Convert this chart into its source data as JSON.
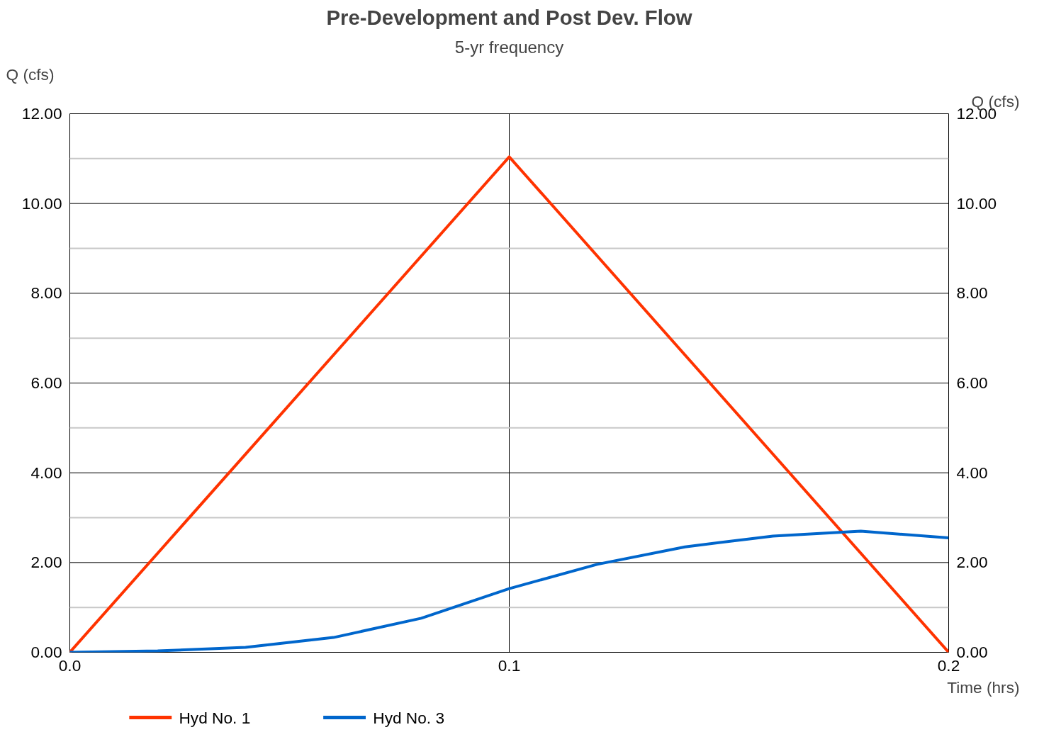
{
  "chart_data": {
    "type": "line",
    "title": "Pre-Development and Post Dev. Flow",
    "subtitle": "5-yr frequency",
    "xlabel": "Time (hrs)",
    "ylabel": "Q (cfs)",
    "y2label": "Q (cfs)",
    "series": [
      {
        "name": "Hyd No. 1",
        "color": "#ff3300",
        "x": [
          0.0,
          0.1,
          0.2
        ],
        "values": [
          0.0,
          11.04,
          0.0
        ]
      },
      {
        "name": "Hyd No. 3",
        "color": "#0066cc",
        "x": [
          0.0,
          0.02,
          0.04,
          0.06,
          0.08,
          0.1,
          0.12,
          0.14,
          0.16,
          0.18,
          0.2
        ],
        "values": [
          0.0,
          0.03,
          0.11,
          0.33,
          0.76,
          1.42,
          1.96,
          2.35,
          2.59,
          2.7,
          2.55
        ]
      }
    ],
    "xlim": [
      0.0,
      0.2
    ],
    "xticks": [
      {
        "value": 0.0,
        "label": "0.0"
      },
      {
        "value": 0.1,
        "label": "0.1"
      },
      {
        "value": 0.2,
        "label": "0.2"
      }
    ],
    "ylim": [
      0,
      12
    ],
    "yticks": [
      {
        "value": 0,
        "label": "0.00"
      },
      {
        "value": 1,
        "label": null
      },
      {
        "value": 2,
        "label": "2.00"
      },
      {
        "value": 3,
        "label": null
      },
      {
        "value": 4,
        "label": "4.00"
      },
      {
        "value": 5,
        "label": null
      },
      {
        "value": 6,
        "label": "6.00"
      },
      {
        "value": 7,
        "label": null
      },
      {
        "value": 8,
        "label": "8.00"
      },
      {
        "value": 9,
        "label": null
      },
      {
        "value": 10,
        "label": "10.00"
      },
      {
        "value": 11,
        "label": null
      },
      {
        "value": 12,
        "label": "12.00"
      }
    ],
    "y2lim": [
      0,
      12
    ],
    "y2ticks": [
      {
        "value": 0,
        "label": "0.00"
      },
      {
        "value": 2,
        "label": "2.00"
      },
      {
        "value": 4,
        "label": "4.00"
      },
      {
        "value": 6,
        "label": "6.00"
      },
      {
        "value": 8,
        "label": "8.00"
      },
      {
        "value": 10,
        "label": "10.00"
      },
      {
        "value": 12,
        "label": "12.00"
      }
    ],
    "grid": true,
    "legend": "bottom left",
    "line_style": "solid",
    "marker": "none"
  }
}
